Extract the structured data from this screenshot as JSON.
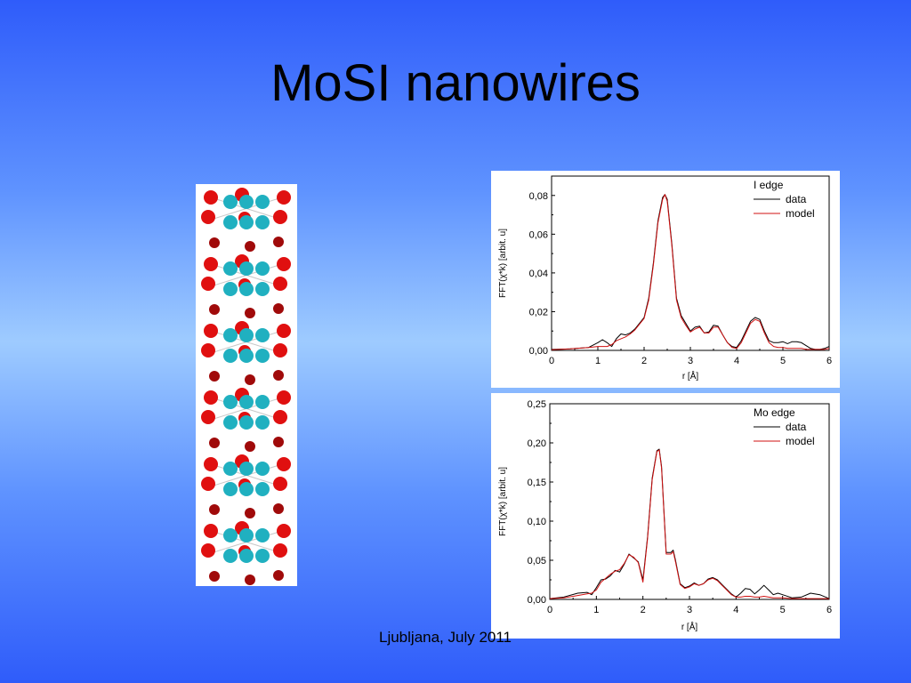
{
  "slide": {
    "title": "MoSI nanowires",
    "footer": "Ljubljana, July 2011"
  },
  "colors": {
    "background_top": "#2f5cfa",
    "background_center": "#9ecbff",
    "data_line": "#000000",
    "model_line": "#d01010",
    "atom_iodine": "#e01010",
    "atom_iodine_dark": "#a00a0a",
    "atom_molybdenum": "#20b0c0"
  },
  "chart_data": [
    {
      "type": "line",
      "title": "",
      "legend_title": "I edge",
      "legend_position": "top-right",
      "xlabel": "r [Å]",
      "ylabel": "FFT(χ*k) [arbit. u]",
      "xlim": [
        0,
        6
      ],
      "ylim": [
        0,
        0.09
      ],
      "xticks": [
        "0",
        "1",
        "2",
        "3",
        "4",
        "5",
        "6"
      ],
      "yticks": [
        "0,00",
        "0,02",
        "0,04",
        "0,06",
        "0,08"
      ],
      "ytick_values": [
        0,
        0.02,
        0.04,
        0.06,
        0.08
      ],
      "series": [
        {
          "name": "data",
          "color": "#000000",
          "x": [
            0,
            0.4,
            0.8,
            1.0,
            1.1,
            1.2,
            1.3,
            1.4,
            1.5,
            1.6,
            1.7,
            1.8,
            1.9,
            2.0,
            2.1,
            2.2,
            2.3,
            2.4,
            2.45,
            2.5,
            2.6,
            2.7,
            2.8,
            2.9,
            3.0,
            3.1,
            3.2,
            3.3,
            3.4,
            3.5,
            3.6,
            3.7,
            3.8,
            3.9,
            4.0,
            4.1,
            4.2,
            4.3,
            4.4,
            4.5,
            4.6,
            4.7,
            4.8,
            4.9,
            5.0,
            5.1,
            5.2,
            5.3,
            5.4,
            5.5,
            5.6,
            5.7,
            5.8,
            5.9,
            6.0
          ],
          "y": [
            0.0005,
            0.0008,
            0.0015,
            0.004,
            0.0055,
            0.004,
            0.002,
            0.006,
            0.0085,
            0.008,
            0.009,
            0.011,
            0.014,
            0.017,
            0.027,
            0.045,
            0.067,
            0.079,
            0.0805,
            0.078,
            0.055,
            0.027,
            0.018,
            0.014,
            0.01,
            0.012,
            0.0125,
            0.009,
            0.0095,
            0.013,
            0.0125,
            0.008,
            0.004,
            0.002,
            0.0015,
            0.005,
            0.01,
            0.015,
            0.017,
            0.016,
            0.01,
            0.005,
            0.004,
            0.004,
            0.0045,
            0.0035,
            0.0045,
            0.0045,
            0.004,
            0.0025,
            0.001,
            0.0005,
            0.0005,
            0.001,
            0.002
          ]
        },
        {
          "name": "model",
          "color": "#d01010",
          "x": [
            0,
            0.4,
            0.8,
            1.0,
            1.1,
            1.2,
            1.3,
            1.4,
            1.5,
            1.6,
            1.7,
            1.8,
            1.9,
            2.0,
            2.1,
            2.2,
            2.3,
            2.4,
            2.45,
            2.5,
            2.6,
            2.7,
            2.8,
            2.9,
            3.0,
            3.1,
            3.2,
            3.3,
            3.4,
            3.5,
            3.6,
            3.7,
            3.8,
            3.9,
            4.0,
            4.1,
            4.2,
            4.3,
            4.4,
            4.5,
            4.6,
            4.7,
            4.8,
            4.9,
            5.0,
            5.1,
            5.2,
            5.3,
            5.4,
            5.5,
            5.6,
            5.7,
            5.8,
            5.9,
            6.0
          ],
          "y": [
            0.0003,
            0.0008,
            0.0015,
            0.002,
            0.002,
            0.002,
            0.003,
            0.005,
            0.006,
            0.007,
            0.0085,
            0.0105,
            0.0135,
            0.0165,
            0.026,
            0.044,
            0.066,
            0.078,
            0.0805,
            0.077,
            0.054,
            0.026,
            0.017,
            0.013,
            0.0095,
            0.011,
            0.012,
            0.009,
            0.009,
            0.012,
            0.012,
            0.008,
            0.004,
            0.0015,
            0.001,
            0.004,
            0.009,
            0.014,
            0.016,
            0.015,
            0.009,
            0.004,
            0.002,
            0.0015,
            0.0015,
            0.001,
            0.001,
            0.001,
            0.001,
            0.0005,
            0.0005,
            0.0005,
            0.0005,
            0.0005,
            0.001
          ]
        }
      ]
    },
    {
      "type": "line",
      "title": "",
      "legend_title": "Mo edge",
      "legend_position": "top-right",
      "xlabel": "r [Å]",
      "ylabel": "FFT(χ*k) [arbit. u]",
      "xlim": [
        0,
        6
      ],
      "ylim": [
        0,
        0.25
      ],
      "xticks": [
        "0",
        "1",
        "2",
        "3",
        "4",
        "5",
        "6"
      ],
      "yticks": [
        "0,00",
        "0,05",
        "0,10",
        "0,15",
        "0,20",
        "0,25"
      ],
      "ytick_values": [
        0,
        0.05,
        0.1,
        0.15,
        0.2,
        0.25
      ],
      "series": [
        {
          "name": "data",
          "color": "#000000",
          "x": [
            0,
            0.3,
            0.6,
            0.8,
            0.9,
            1.0,
            1.1,
            1.2,
            1.3,
            1.4,
            1.5,
            1.6,
            1.7,
            1.8,
            1.9,
            2.0,
            2.1,
            2.2,
            2.3,
            2.35,
            2.4,
            2.5,
            2.6,
            2.65,
            2.7,
            2.8,
            2.9,
            3.0,
            3.1,
            3.2,
            3.3,
            3.4,
            3.5,
            3.6,
            3.7,
            3.8,
            3.9,
            4.0,
            4.1,
            4.2,
            4.3,
            4.4,
            4.5,
            4.6,
            4.7,
            4.8,
            4.9,
            5.0,
            5.2,
            5.4,
            5.6,
            5.8,
            6.0
          ],
          "y": [
            0.001,
            0.003,
            0.008,
            0.009,
            0.006,
            0.015,
            0.025,
            0.026,
            0.03,
            0.037,
            0.035,
            0.045,
            0.058,
            0.053,
            0.048,
            0.025,
            0.08,
            0.155,
            0.19,
            0.192,
            0.17,
            0.06,
            0.06,
            0.063,
            0.05,
            0.02,
            0.015,
            0.017,
            0.021,
            0.018,
            0.02,
            0.026,
            0.028,
            0.025,
            0.019,
            0.013,
            0.007,
            0.003,
            0.008,
            0.014,
            0.013,
            0.007,
            0.012,
            0.018,
            0.012,
            0.006,
            0.008,
            0.006,
            0.002,
            0.003,
            0.008,
            0.006,
            0.001
          ]
        },
        {
          "name": "model",
          "color": "#d01010",
          "x": [
            0,
            0.3,
            0.6,
            0.8,
            0.9,
            1.0,
            1.1,
            1.2,
            1.3,
            1.4,
            1.5,
            1.6,
            1.7,
            1.8,
            1.9,
            2.0,
            2.1,
            2.2,
            2.3,
            2.35,
            2.4,
            2.5,
            2.6,
            2.65,
            2.7,
            2.8,
            2.9,
            3.0,
            3.1,
            3.2,
            3.3,
            3.4,
            3.5,
            3.6,
            3.7,
            3.8,
            3.9,
            4.0,
            4.1,
            4.2,
            4.3,
            4.4,
            4.5,
            4.6,
            4.7,
            4.8,
            4.9,
            5.0,
            5.2,
            5.4,
            5.6,
            5.8,
            6.0
          ],
          "y": [
            0.001,
            0.002,
            0.005,
            0.007,
            0.008,
            0.012,
            0.022,
            0.027,
            0.032,
            0.036,
            0.038,
            0.046,
            0.057,
            0.054,
            0.047,
            0.022,
            0.078,
            0.153,
            0.189,
            0.191,
            0.168,
            0.058,
            0.058,
            0.061,
            0.048,
            0.019,
            0.014,
            0.016,
            0.02,
            0.018,
            0.02,
            0.025,
            0.027,
            0.024,
            0.018,
            0.012,
            0.006,
            0.003,
            0.003,
            0.004,
            0.004,
            0.003,
            0.003,
            0.004,
            0.003,
            0.002,
            0.002,
            0.002,
            0.001,
            0.001,
            0.001,
            0.001,
            0.001
          ]
        }
      ]
    }
  ]
}
